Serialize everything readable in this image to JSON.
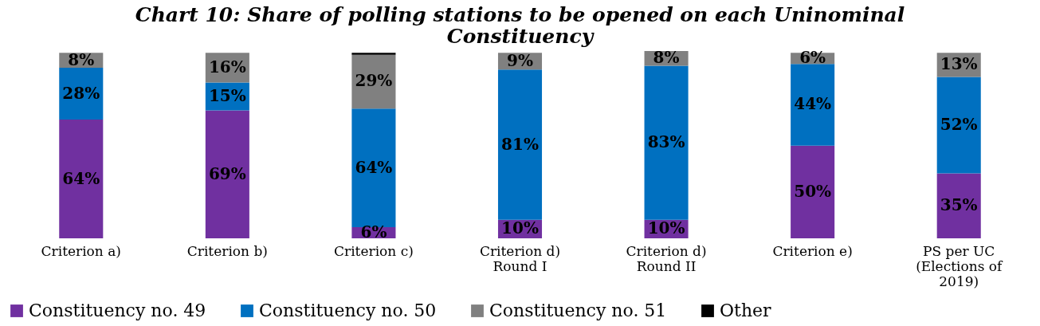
{
  "chart_data": {
    "type": "bar",
    "stacked": true,
    "title": "Chart 10: Share of polling stations to be opened on each Uninominal Constituency",
    "categories": [
      "Criterion a)",
      "Criterion b)",
      "Criterion c)",
      "Criterion d) Round I",
      "Criterion d) Round II",
      "Criterion e)",
      "PS per UC (Elections of 2019)"
    ],
    "series": [
      {
        "name": "Constituency no. 49",
        "color": "#7030a0",
        "values": [
          64,
          69,
          6,
          10,
          10,
          50,
          35
        ],
        "value_labels": [
          "64%",
          "69%",
          "6%",
          "10%",
          "10%",
          "50%",
          "35%"
        ]
      },
      {
        "name": "Constituency no. 50",
        "color": "#0070c0",
        "values": [
          28,
          15,
          64,
          81,
          83,
          44,
          52
        ],
        "value_labels": [
          "28%",
          "15%",
          "64%",
          "81%",
          "83%",
          "44%",
          "52%"
        ]
      },
      {
        "name": "Constituency no. 51",
        "color": "#808080",
        "values": [
          8,
          16,
          29,
          9,
          8,
          6,
          13
        ],
        "value_labels": [
          "8%",
          "16%",
          "29%",
          "9%",
          "8%",
          "6%",
          "13%"
        ]
      },
      {
        "name": "Other",
        "color": "#000000",
        "values": [
          0,
          0,
          1,
          0,
          0,
          0,
          0
        ]
      }
    ],
    "legend": "bottom"
  }
}
